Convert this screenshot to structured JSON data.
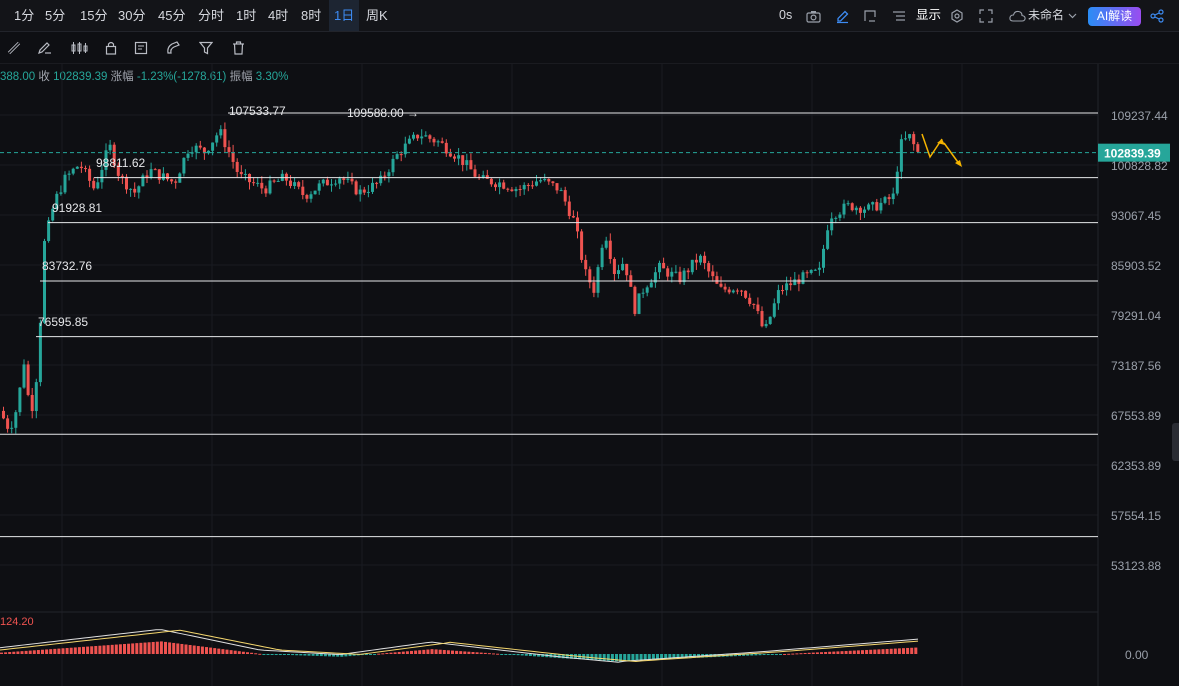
{
  "timeframes": [
    "1分",
    "5分",
    "15分",
    "30分",
    "45分",
    "分时",
    "1时",
    "4时",
    "8时",
    "1日",
    "周K"
  ],
  "active_timeframe": "1日",
  "right_toolbar": {
    "countdown": "0s",
    "display_label": "显示",
    "layout_name": "未命名",
    "ai_label": "AI解读"
  },
  "drawing_tools": [
    "ruler-icon",
    "pen-icon",
    "candles-icon",
    "lock-icon",
    "note-icon",
    "magnet-icon",
    "filter-icon",
    "trash-icon"
  ],
  "ohlc": {
    "open_partial": "388.00",
    "close_label": "收",
    "close": "102839.39",
    "change_label": "涨幅",
    "change": "-1.23%(-1278.61)",
    "amp_label": "振幅",
    "amplitude": "3.30%"
  },
  "price_axis": [
    "109237.44",
    "100828.82",
    "93067.45",
    "85903.52",
    "79291.04",
    "73187.56",
    "67553.89",
    "62353.89",
    "57554.15",
    "53123.88"
  ],
  "current_price": "102839.39",
  "macd": {
    "top_label": "124.20",
    "zero_label": "0.00"
  },
  "levels": [
    {
      "label": "107533.77",
      "price": 107533.77
    },
    {
      "label": "109588.00 →",
      "price": 109588.0
    },
    {
      "label": "98811.62",
      "price": 98811.62
    },
    {
      "label": "91928.81",
      "price": 91928.81
    },
    {
      "label": "83732.76",
      "price": 83732.76
    },
    {
      "label": "76595.85",
      "price": 76595.85
    },
    {
      "label": "",
      "price": 65500
    },
    {
      "label": "",
      "price": 55600
    }
  ],
  "colors": {
    "up": "#26a69a",
    "down": "#ef5350",
    "accent": "#3d8bf2",
    "current": "#26a69a",
    "arrow": "#f5b400"
  }
}
